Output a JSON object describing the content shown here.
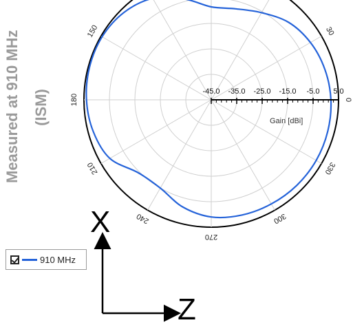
{
  "sidebar_title": {
    "line1": "Measured at 910 MHz",
    "line2": "(ISM)"
  },
  "chart_data": {
    "type": "polar-line",
    "radial_axis": {
      "label": "Gain [dBi]",
      "range": [
        -45,
        5
      ],
      "tick_labels": [
        "-45.0",
        "-35.0",
        "-25.0",
        "-15.0",
        "-5.0",
        "5.0"
      ],
      "tick_values": [
        -45,
        -35,
        -25,
        -15,
        -5,
        5
      ]
    },
    "angular_axis": {
      "unit": "degrees",
      "tick_labels": [
        "0",
        "30",
        "150",
        "180",
        "210",
        "240",
        "270",
        "300",
        "330"
      ]
    },
    "series": [
      {
        "name": "910 MHz",
        "color": "#2563d9",
        "angles": [
          0,
          15,
          30,
          45,
          60,
          75,
          90,
          105,
          120,
          135,
          150,
          165,
          180,
          195,
          210,
          225,
          240,
          255,
          270,
          285,
          300,
          315,
          330,
          345,
          360
        ],
        "gain": [
          2.0,
          1.2,
          0.0,
          -2.0,
          -5.5,
          -8.0,
          -8.5,
          -4.0,
          1.0,
          3.5,
          4.5,
          4.5,
          4.0,
          3.0,
          1.0,
          -4.5,
          -5.0,
          -1.5,
          1.0,
          1.8,
          2.2,
          2.5,
          2.6,
          2.4,
          2.0
        ]
      }
    ],
    "legend": {
      "placement": "bottom-left",
      "checked": true
    }
  },
  "axes_overlay": {
    "vertical_label": "X",
    "horizontal_label": "Z"
  }
}
